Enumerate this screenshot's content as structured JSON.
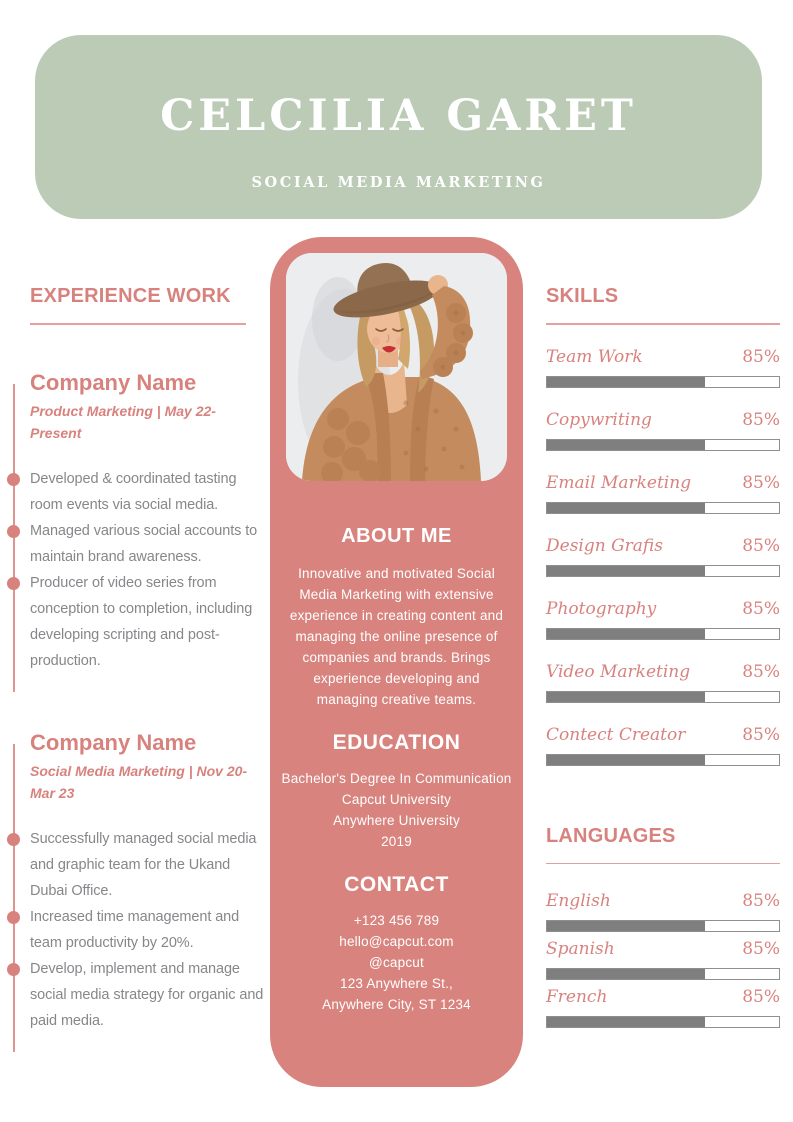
{
  "colors": {
    "header_green": "#bbcbb5",
    "column_pink": "#d8837e",
    "accent_pink": "#d8827e",
    "body_gray": "#85878a",
    "bar_gray": "#7f7f7f"
  },
  "header": {
    "name": "CELCILIA GARET",
    "role": "SOCIAL MEDIA MARKETING"
  },
  "experience": {
    "title": "EXPERIENCE WORK",
    "jobs": [
      {
        "company": "Company Name",
        "meta": "Product Marketing | May 22-Present",
        "bullets": [
          "Developed & coordinated tasting room events via social media.",
          "Managed various social accounts to maintain brand awareness.",
          "Producer of video series from conception to completion, including developing scripting and post-production."
        ]
      },
      {
        "company": "Company Name",
        "meta": "Social Media Marketing | Nov 20-Mar 23",
        "bullets": [
          "Successfully managed social media and graphic team for the Ukand Dubai Office.",
          "Increased time management and team productivity by 20%.",
          "Develop, implement and manage social media strategy for organic and paid media."
        ]
      }
    ]
  },
  "about": {
    "title": "ABOUT ME",
    "text": "Innovative and motivated Social Media Marketing with extensive experience in creating content and managing the online presence of companies and brands. Brings experience developing and managing creative teams."
  },
  "education": {
    "title": "EDUCATION",
    "lines": [
      "Bachelor's Degree In Communication",
      "Capcut University",
      "Anywhere University",
      "2019"
    ]
  },
  "contact": {
    "title": "CONTACT",
    "lines": [
      "+123  456 789",
      "hello@capcut.com",
      "@capcut",
      "123 Anywhere St.,",
      "Anywhere City, ST 1234"
    ]
  },
  "skills": {
    "title": "SKILLS",
    "items": [
      {
        "label": "Team Work",
        "percent": "85%",
        "fill": 68
      },
      {
        "label": "Copywriting",
        "percent": "85%",
        "fill": 68
      },
      {
        "label": "Email Marketing",
        "percent": "85%",
        "fill": 68
      },
      {
        "label": "Design Grafis",
        "percent": "85%",
        "fill": 68
      },
      {
        "label": "Photography",
        "percent": "85%",
        "fill": 68
      },
      {
        "label": "Video Marketing",
        "percent": "85%",
        "fill": 68
      },
      {
        "label": "Contect Creator",
        "percent": "85%",
        "fill": 68
      }
    ]
  },
  "languages": {
    "title": "LANGUAGES",
    "items": [
      {
        "label": "English",
        "percent": "85%",
        "fill": 68
      },
      {
        "label": "Spanish",
        "percent": "85%",
        "fill": 68
      },
      {
        "label": "French",
        "percent": "85%",
        "fill": 68
      }
    ]
  }
}
